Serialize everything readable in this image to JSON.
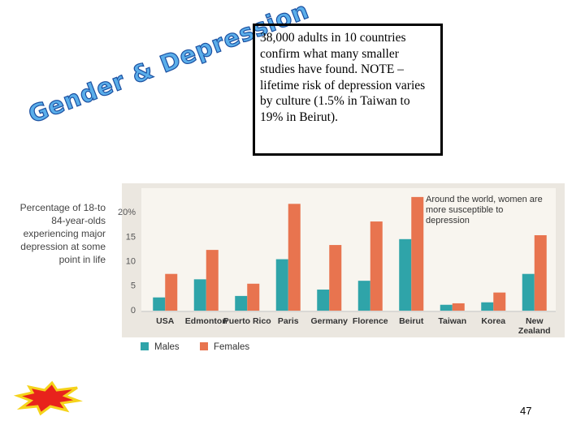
{
  "slide_title": "Gender & Depression",
  "note": "38,000 adults in 10 countries confirm what many smaller studies have found. NOTE – lifetime risk of depression varies by culture (1.5% in Taiwan to 19% in Beirut).",
  "page_number": "47",
  "chart_data": {
    "type": "bar",
    "y_label": "Percentage of 18-to 84-year-olds experiencing major depression at some point in life",
    "annotation": "Around the world, women are more susceptible to depression",
    "categories": [
      "USA",
      "Edmonton",
      "Puerto Rico",
      "Paris",
      "Germany",
      "Florence",
      "Beirut",
      "Taiwan",
      "Korea",
      "New Zealand"
    ],
    "series": [
      {
        "name": "Males",
        "color": "#2fa4a9",
        "values": [
          2.7,
          6.4,
          3.0,
          10.5,
          4.3,
          6.1,
          14.6,
          1.2,
          1.7,
          7.5
        ]
      },
      {
        "name": "Females",
        "color": "#e8744f",
        "values": [
          7.5,
          12.4,
          5.5,
          21.8,
          13.4,
          18.2,
          23.2,
          1.5,
          3.7,
          15.4
        ]
      }
    ],
    "ylim": [
      0,
      25
    ],
    "yticks": [
      0,
      5,
      10,
      15,
      {
        "value": 20,
        "label": "20%"
      }
    ],
    "grid": false,
    "legend": "bottom-left"
  }
}
